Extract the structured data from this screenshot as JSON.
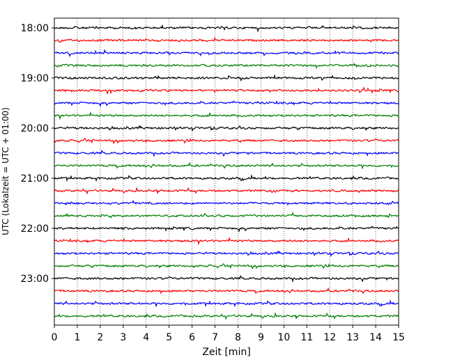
{
  "chart_data": {
    "type": "line",
    "title": "",
    "xlabel": "Zeit  [min]",
    "ylabel": "UTC (Lokalzeit = UTC + 01:00)",
    "xlim": [
      0,
      15
    ],
    "x_ticks": [
      "0",
      "1",
      "2",
      "3",
      "4",
      "5",
      "6",
      "7",
      "8",
      "9",
      "10",
      "11",
      "12",
      "13",
      "14",
      "15"
    ],
    "y_ticks": [
      "18:00",
      "19:00",
      "20:00",
      "21:00",
      "22:00",
      "23:00"
    ],
    "traces_per_hour": 4,
    "minutes_per_trace": 15,
    "start_time": "18:00",
    "end_time": "00:00",
    "trace_count": 24,
    "trace_colors": [
      "#000000",
      "#ff0000",
      "#0000ff",
      "#007f00"
    ],
    "grid": "vertical dotted",
    "legend": "none"
  }
}
